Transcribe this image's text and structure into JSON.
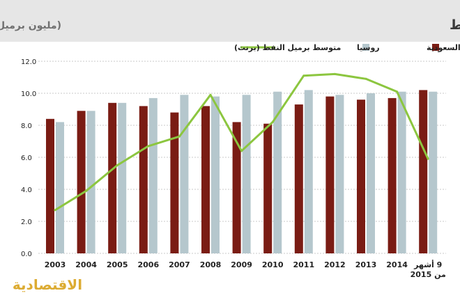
{
  "chart_data": {
    "type": "bar",
    "title": "متوسط الإنتاج اليومي للسعودية وروسيا من النفط",
    "subtitle": "(مليون برميل)",
    "categories": [
      "2003",
      "2004",
      "2005",
      "2006",
      "2007",
      "2008",
      "2009",
      "2010",
      "2011",
      "2012",
      "2013",
      "2014",
      "9 أشهر|من 2015"
    ],
    "series": [
      {
        "name": "السعودية",
        "kind": "bar",
        "color": "#7a1c14",
        "values": [
          8.4,
          8.9,
          9.4,
          9.2,
          8.8,
          9.2,
          8.2,
          8.1,
          9.3,
          9.8,
          9.6,
          9.7,
          10.2
        ]
      },
      {
        "name": "روسيا",
        "kind": "bar",
        "color": "#b5c7cd",
        "values": [
          8.2,
          8.9,
          9.4,
          9.7,
          9.9,
          9.8,
          9.9,
          10.1,
          10.2,
          9.9,
          10.0,
          10.1,
          10.1
        ]
      },
      {
        "name": "متوسط برميل النفط (برنت)",
        "kind": "line",
        "color": "#8cc63f",
        "values": [
          2.7,
          3.9,
          5.5,
          6.7,
          7.3,
          9.9,
          6.4,
          8.2,
          11.1,
          11.2,
          10.9,
          10.1,
          5.9
        ]
      }
    ],
    "y_ticks": [
      "0.0",
      "2.0",
      "4.0",
      "6.0",
      "8.0",
      "10.0",
      "12.0"
    ],
    "ylim": [
      0,
      12
    ],
    "grid": true,
    "legend_position": "top"
  },
  "watermark": "الاقتصادية",
  "colors": {
    "header_bg": "#e6e6e6",
    "title_text": "#3a3a3a",
    "subtitle_text": "#707070",
    "grid": "#c8c8c8"
  }
}
